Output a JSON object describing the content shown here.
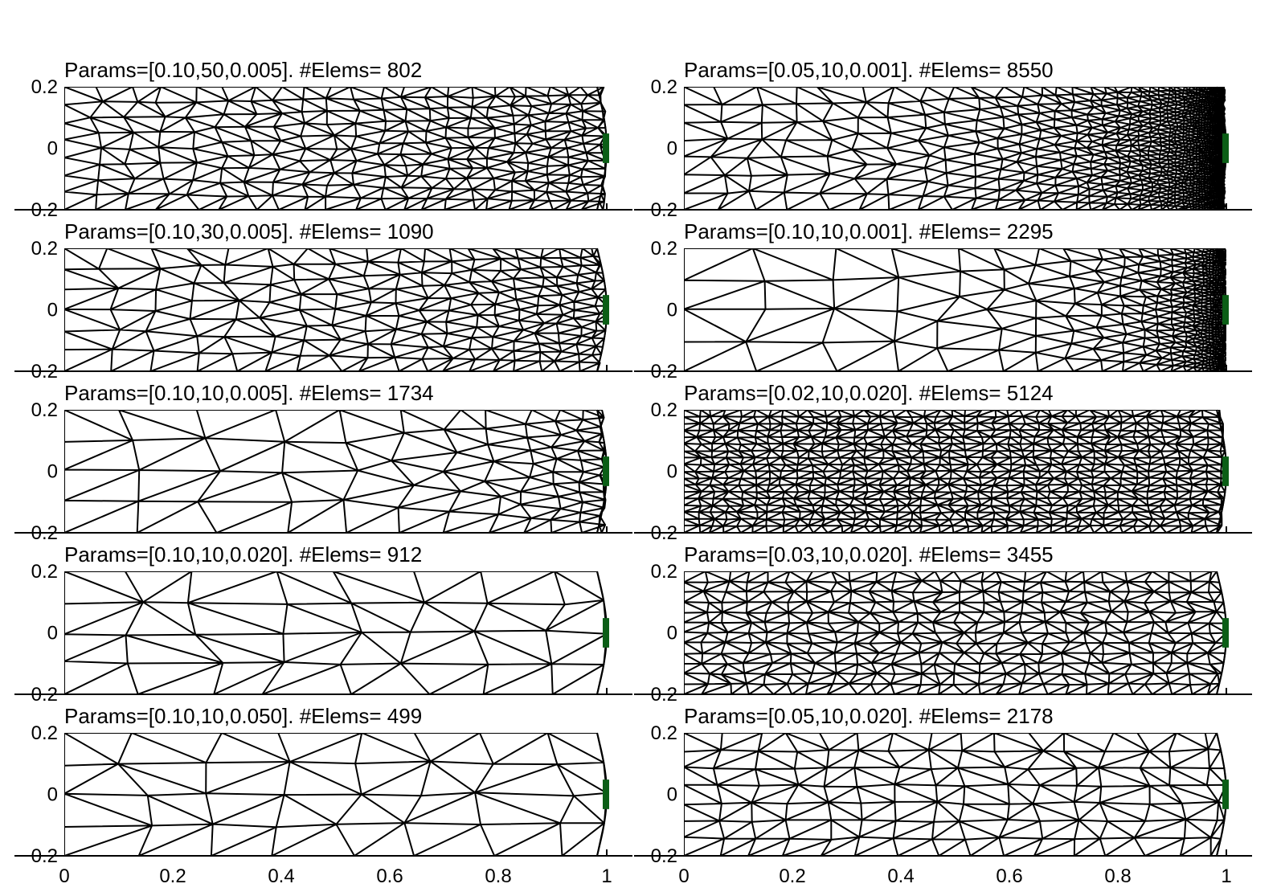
{
  "figure": {
    "panel_color": "#000000",
    "marker_color": "#0b5e16",
    "panels": [
      {
        "title": "Params=[0.10,50,0.005]. #Elems= 802",
        "elements": 802,
        "h": 0.1,
        "b": 50,
        "c": 0.005
      },
      {
        "title": "Params=[0.05,10,0.001]. #Elems= 8550",
        "elements": 8550,
        "h": 0.05,
        "b": 10,
        "c": 0.001
      },
      {
        "title": "Params=[0.10,30,0.005]. #Elems= 1090",
        "elements": 1090,
        "h": 0.1,
        "b": 30,
        "c": 0.005
      },
      {
        "title": "Params=[0.10,10,0.001]. #Elems= 2295",
        "elements": 2295,
        "h": 0.1,
        "b": 10,
        "c": 0.001
      },
      {
        "title": "Params=[0.10,10,0.005]. #Elems= 1734",
        "elements": 1734,
        "h": 0.1,
        "b": 10,
        "c": 0.005
      },
      {
        "title": "Params=[0.02,10,0.020]. #Elems= 5124",
        "elements": 5124,
        "h": 0.02,
        "b": 10,
        "c": 0.02
      },
      {
        "title": "Params=[0.10,10,0.020]. #Elems= 912",
        "elements": 912,
        "h": 0.1,
        "b": 10,
        "c": 0.02
      },
      {
        "title": "Params=[0.03,10,0.020]. #Elems= 3455",
        "elements": 3455,
        "h": 0.03,
        "b": 10,
        "c": 0.02
      },
      {
        "title": "Params=[0.10,10,0.050]. #Elems= 499",
        "elements": 499,
        "h": 0.1,
        "b": 10,
        "c": 0.05
      },
      {
        "title": "Params=[0.05,10,0.020]. #Elems= 2178",
        "elements": 2178,
        "h": 0.05,
        "b": 10,
        "c": 0.02
      }
    ],
    "y_ticks": [
      "0.2",
      "0",
      "−0.2"
    ],
    "x_ticks": [
      "0",
      "0.2",
      "0.4",
      "0.6",
      "0.8",
      "1"
    ]
  }
}
